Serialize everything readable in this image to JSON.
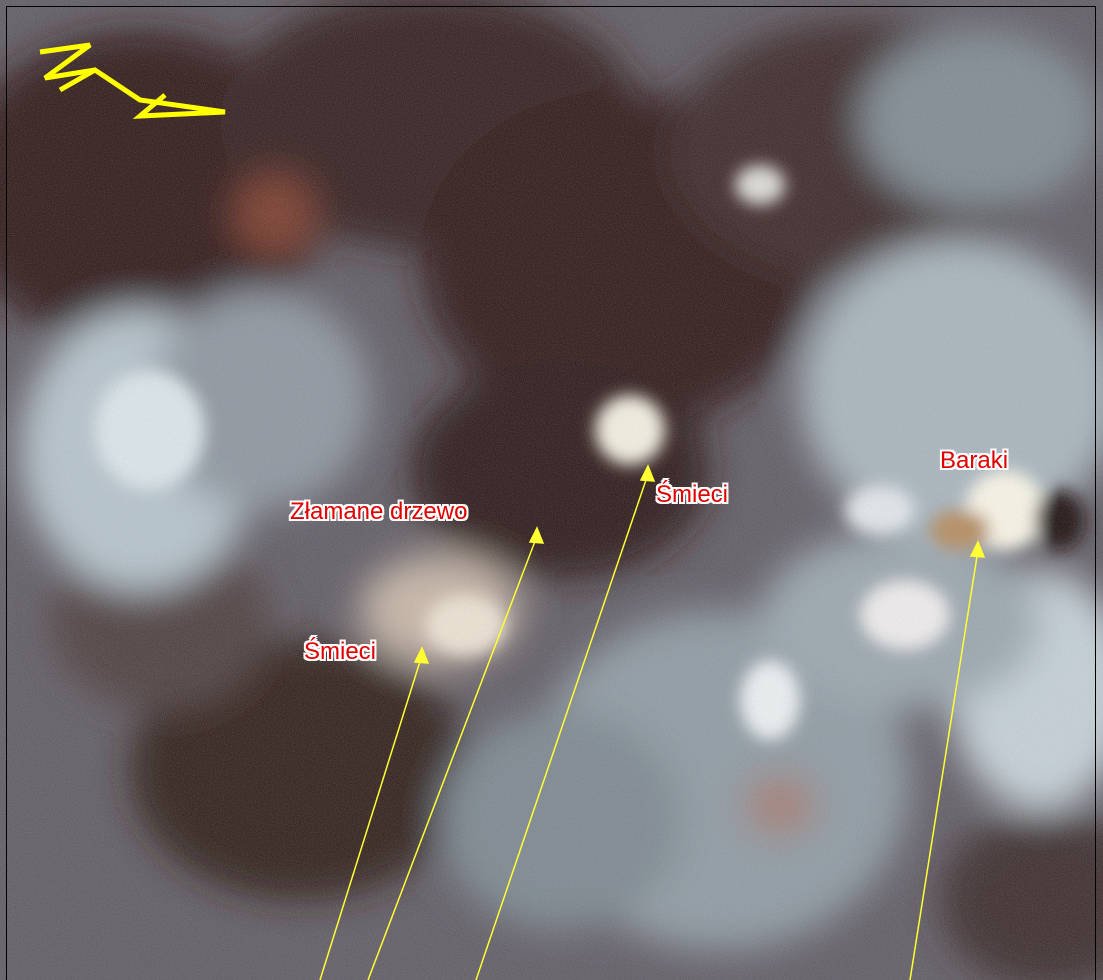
{
  "map": {
    "labels": {
      "broken_tree": "Złamane drzewo",
      "trash_left": "Śmieci",
      "trash_right": "Śmieci",
      "barracks": "Baraki"
    },
    "north_arrow": {
      "letter": "N",
      "icon": "north-arrow-icon",
      "color": "#ffff00"
    },
    "pointer_color": "#ffff33",
    "label_color": "#e00000"
  }
}
